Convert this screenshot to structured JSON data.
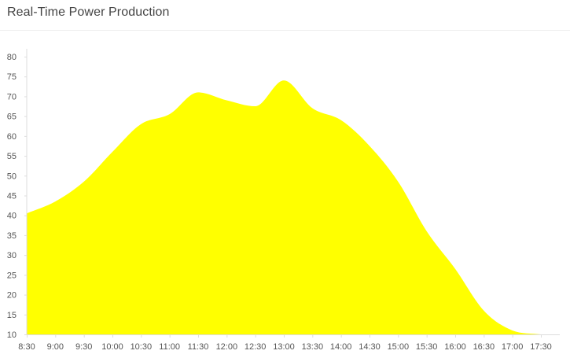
{
  "panel": {
    "title": "Real-Time Power Production"
  },
  "colors": {
    "area_fill": "#ffff00",
    "axis_line": "#dddddd",
    "tick_text": "#555555"
  },
  "chart_data": {
    "type": "area",
    "title": "",
    "xlabel": "",
    "ylabel": "",
    "x": [
      "8:30",
      "9:00",
      "9:30",
      "10:00",
      "10:30",
      "11:00",
      "11:30",
      "12:00",
      "12:30",
      "13:00",
      "13:30",
      "14:00",
      "14:30",
      "15:00",
      "15:30",
      "16:00",
      "16:30",
      "17:00",
      "17:30"
    ],
    "series": [
      {
        "values": [
          40.5,
          43.5,
          48.5,
          56,
          63,
          65.5,
          71,
          69,
          67.5,
          74,
          67,
          64,
          57.5,
          48.5,
          36,
          26.5,
          16,
          11,
          10
        ]
      }
    ],
    "ylim": [
      10,
      80
    ],
    "yticks": [
      10,
      15,
      20,
      25,
      30,
      35,
      40,
      45,
      50,
      55,
      60,
      65,
      70,
      75,
      80
    ],
    "grid": false,
    "legend": "none"
  }
}
